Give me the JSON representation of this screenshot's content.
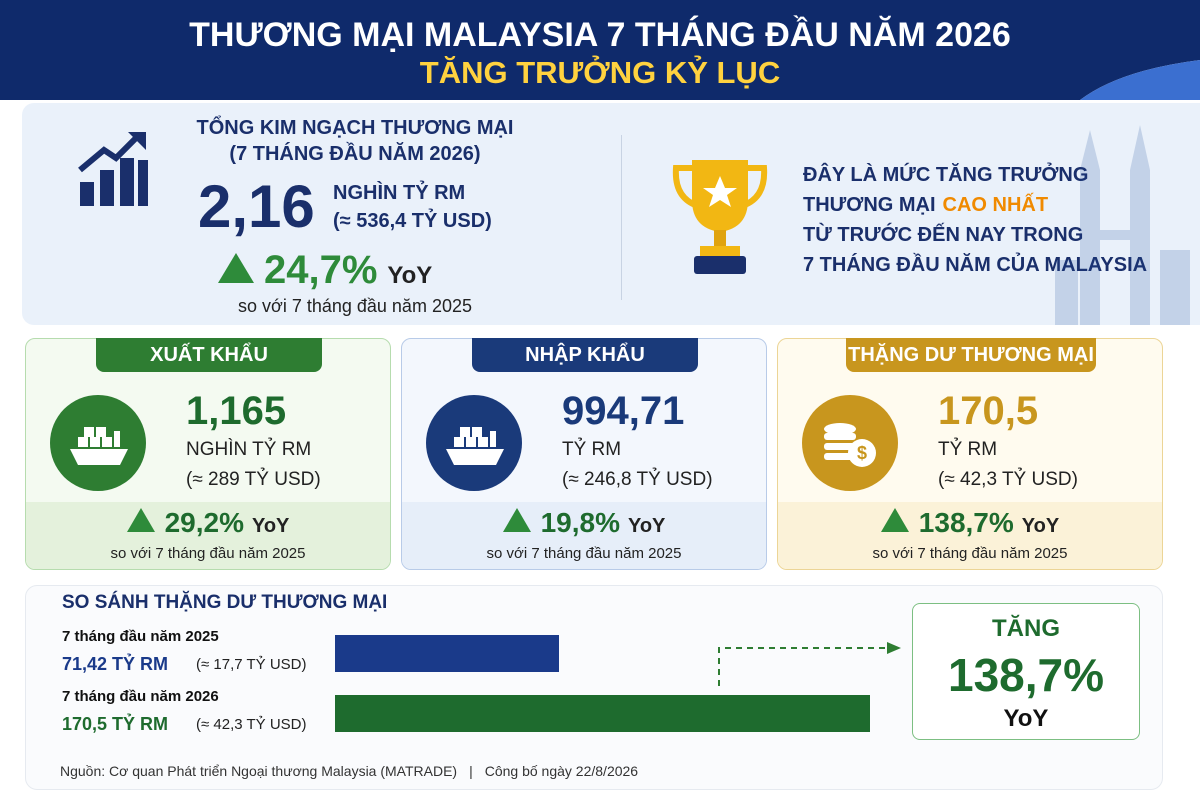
{
  "header": {
    "title": "THƯƠNG MẠI MALAYSIA 7 THÁNG ĐẦU NĂM 2026",
    "subtitle": "TĂNG TRƯỞNG KỶ LỤC"
  },
  "total": {
    "heading": "TỔNG KIM NGẠCH THƯƠNG MẠI",
    "period": "(7 THÁNG ĐẦU NĂM 2026)",
    "value": "2,16",
    "unit": "NGHÌN TỶ RM",
    "usd": "(≈ 536,4 TỶ USD)",
    "growth": "24,7%",
    "growth_unit": "YoY",
    "note": "so với 7 tháng đầu năm 2025"
  },
  "highlight": {
    "lines": [
      [
        "ĐÂY LÀ MỨC TĂNG TRƯỞNG"
      ],
      [
        "THƯƠNG MẠI",
        "CAO NHẤT"
      ],
      [
        "TỪ TRƯỚC ĐẾN NAY TRONG"
      ],
      [
        "7 THÁNG ĐẦU NĂM CỦA MALAYSIA"
      ]
    ]
  },
  "cards": [
    {
      "tag": "XUẤT KHẨU",
      "value": "1,165",
      "unit": "NGHÌN TỶ RM",
      "usd": "(≈ 289 TỶ USD)",
      "growth": "29,2%",
      "growth_unit": "YoY",
      "note": "so với 7 tháng đầu năm 2025"
    },
    {
      "tag": "NHẬP KHẨU",
      "value": "994,71",
      "unit": "TỶ RM",
      "usd": "(≈ 246,8 TỶ USD)",
      "growth": "19,8%",
      "growth_unit": "YoY",
      "note": "so với 7 tháng đầu năm 2025"
    },
    {
      "tag": "THẶNG DƯ THƯƠNG MẠI",
      "value": "170,5",
      "unit": "TỶ RM",
      "usd": "(≈ 42,3 TỶ USD)",
      "growth": "138,7%",
      "growth_unit": "YoY",
      "note": "so với 7 tháng đầu năm 2025"
    }
  ],
  "comparison": {
    "title": "SO SÁNH THẶNG DƯ THƯƠNG MẠI",
    "rows": [
      {
        "period": "7 tháng đầu năm 2025",
        "value": 71.42,
        "value_label": "71,42 TỶ RM",
        "usd": "(≈ 17,7 TỶ USD)",
        "color": "#1a3a8a"
      },
      {
        "period": "7 tháng đầu năm 2026",
        "value": 170.5,
        "value_label": "170,5 TỶ RM",
        "usd": "(≈ 42,3 TỶ USD)",
        "color": "#1e6b2e"
      }
    ],
    "result": {
      "label": "TĂNG",
      "value": "138,7%",
      "unit": "YoY"
    }
  },
  "footer": {
    "source": "Nguồn: Cơ quan Phát triển Ngoại thương Malaysia (MATRADE)",
    "published": "Công bố ngày 22/8/2026"
  }
}
